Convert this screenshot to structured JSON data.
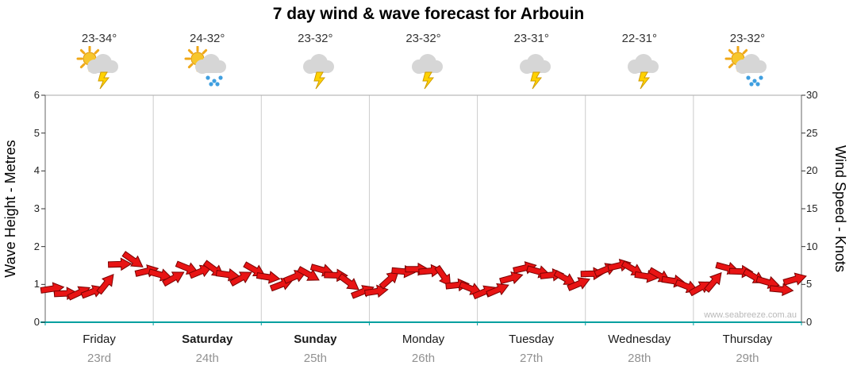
{
  "title": "7 day wind & wave forecast for Arbouin",
  "watermark": "www.seabreeze.com.au",
  "axes": {
    "left": {
      "label": "Wave Height - Metres",
      "ticks": [
        0,
        1,
        2,
        3,
        4,
        5,
        6
      ],
      "range": [
        0,
        6
      ]
    },
    "right": {
      "label": "Wind Speed - Knots",
      "ticks": [
        0,
        5,
        10,
        15,
        20,
        25,
        30
      ],
      "range": [
        0,
        30
      ]
    }
  },
  "days": [
    {
      "name": "Friday",
      "date": "23rd",
      "temp": "23-34°",
      "icon": "sun-cloud-lightning",
      "weekend": false
    },
    {
      "name": "Saturday",
      "date": "24th",
      "temp": "24-32°",
      "icon": "sun-cloud-rain",
      "weekend": true
    },
    {
      "name": "Sunday",
      "date": "25th",
      "temp": "23-32°",
      "icon": "cloud-lightning",
      "weekend": true
    },
    {
      "name": "Monday",
      "date": "26th",
      "temp": "23-32°",
      "icon": "cloud-lightning",
      "weekend": false
    },
    {
      "name": "Tuesday",
      "date": "27th",
      "temp": "23-31°",
      "icon": "cloud-lightning",
      "weekend": false
    },
    {
      "name": "Wednesday",
      "date": "28th",
      "temp": "22-31°",
      "icon": "cloud-lightning",
      "weekend": false
    },
    {
      "name": "Thursday",
      "date": "29th",
      "temp": "23-32°",
      "icon": "sun-cloud-rain",
      "weekend": false
    }
  ],
  "colors": {
    "arrow": "#e81414",
    "arrow_outline": "#7a0202",
    "baseline": "#00a0a0",
    "grid": "#cccccc",
    "border": "#666666",
    "tick": "#333333"
  },
  "chart_data": {
    "type": "line",
    "title": "7 day wind & wave forecast for Arbouin",
    "xlabel": "",
    "ylabel_left": "Wave Height - Metres",
    "ylabel_right": "Wind Speed - Knots",
    "ylim_left": [
      0,
      6
    ],
    "ylim_right": [
      0,
      30
    ],
    "grid": "vertical-day-boundaries",
    "legend": "none",
    "marker": "red-wind-arrows",
    "categories": [
      "Friday 23rd",
      "Saturday 24th",
      "Sunday 25th",
      "Monday 26th",
      "Tuesday 27th",
      "Wednesday 28th",
      "Thursday 29th"
    ],
    "points_per_day": 8,
    "series": [
      {
        "name": "Wave Height (m)",
        "values": [
          0.8,
          0.72,
          0.78,
          0.85,
          1.1,
          1.45,
          1.6,
          1.35,
          1.3,
          1.25,
          1.35,
          1.3,
          1.4,
          1.3,
          1.25,
          1.3,
          1.15,
          1.0,
          1.25,
          1.35,
          1.3,
          1.2,
          1.05,
          0.85,
          0.9,
          1.05,
          1.3,
          1.4,
          1.4,
          1.3,
          0.9,
          0.85,
          0.8,
          0.9,
          1.25,
          1.35,
          1.3,
          1.25,
          1.2,
          1.1,
          1.2,
          1.35,
          1.5,
          1.45,
          1.3,
          1.15,
          1.05,
          0.95,
          0.95,
          1.15,
          1.35,
          1.3,
          1.2,
          1.1,
          0.95,
          1.05
        ]
      },
      {
        "name": "Wind Speed (knots)",
        "values": [
          4.0,
          3.6,
          3.9,
          4.25,
          5.5,
          7.25,
          8.0,
          6.75,
          6.5,
          6.25,
          6.75,
          6.5,
          7.0,
          6.5,
          6.25,
          6.5,
          5.75,
          5.0,
          6.25,
          6.75,
          6.5,
          6.0,
          5.25,
          4.25,
          4.5,
          5.25,
          6.5,
          7.0,
          7.0,
          6.5,
          4.5,
          4.25,
          4.0,
          4.5,
          6.25,
          6.75,
          6.5,
          6.25,
          6.0,
          5.5,
          6.0,
          6.75,
          7.5,
          7.25,
          6.5,
          5.75,
          5.25,
          4.75,
          4.75,
          5.75,
          6.75,
          6.5,
          6.0,
          5.5,
          4.75,
          5.25
        ]
      }
    ]
  }
}
